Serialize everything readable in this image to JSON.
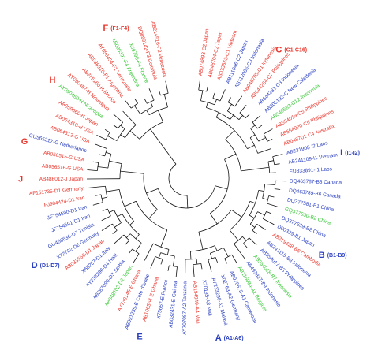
{
  "clades": [
    {
      "name": "C",
      "range": "(C1-C16)",
      "color": "#e8352c",
      "leaves": [
        {
          "label": "AB074893-C2 Japan",
          "color": "#e8352c"
        },
        {
          "label": "AB048704-C2 Japan",
          "color": "#e8352c"
        },
        {
          "label": "AB033553-C1 Vietnam",
          "color": "#e8352c"
        },
        {
          "label": "AB111946-C2 Japan",
          "color": "#2a3fc0"
        },
        {
          "label": "AB112066-C3 Indonesia",
          "color": "#2a3fc0"
        },
        {
          "label": "AB048705-C1 Indonesia",
          "color": "#e8352c"
        },
        {
          "label": "AB644284-C7 Philippines",
          "color": "#e8352c"
        },
        {
          "label": "AB644281-C3 Indonesia",
          "color": "#2a3fc0"
        },
        {
          "label": "AB205192-C New Caledonia",
          "color": "#2a3fc0"
        },
        {
          "label": "AB540583-C12 Indonesia",
          "color": "#38c738"
        },
        {
          "label": "AB554019-C5 Philippines",
          "color": "#e8352c"
        },
        {
          "label": "AB554020-C5 Philippines",
          "color": "#e8352c"
        },
        {
          "label": "AB048701-C4 Australia",
          "color": "#e8352c"
        }
      ]
    },
    {
      "name": "I",
      "range": "(I1-I2)",
      "color": "#2a3fc0",
      "leaves": [
        {
          "label": "AB231908-I2 Laos",
          "color": "#2a3fc0"
        },
        {
          "label": "AB241109-I1 Vietnam",
          "color": "#2a3fc0"
        },
        {
          "label": "EU833891-I1 Laos",
          "color": "#2a3fc0"
        }
      ]
    },
    {
      "name": "B",
      "range": "(B1-B9)",
      "color": "#2a3fc0",
      "leaves": [
        {
          "label": "DQ463787-B6 Canada",
          "color": "#2a3fc0"
        },
        {
          "label": "DQ463789-B6 Canada",
          "color": "#2a3fc0"
        },
        {
          "label": "DQ377581-B1 China",
          "color": "#2a3fc0"
        },
        {
          "label": "GQ377630-B2 China",
          "color": "#38c738"
        },
        {
          "label": "DQ377639-B2 China",
          "color": "#2a3fc0"
        },
        {
          "label": "D00329-B1 Japan",
          "color": "#2a3fc0"
        },
        {
          "label": "AB219428-B8 Cambodia",
          "color": "#e8352c"
        },
        {
          "label": "AB241115-B3 Indonesia",
          "color": "#2a3fc0"
        },
        {
          "label": "AB554017-B3 Philippines",
          "color": "#2a3fc0"
        },
        {
          "label": "AB554018-B7 Indonesia",
          "color": "#38c738"
        },
        {
          "label": "AB493827-B9 Indonesia",
          "color": "#2a3fc0"
        }
      ]
    },
    {
      "name": "A",
      "range": "(A1-A6)",
      "color": "#2a3fc0",
      "leaves": [
        {
          "label": "AB116084-A2 Belgium",
          "color": "#38c738"
        },
        {
          "label": "AB076678-A1 Cameroon",
          "color": "#2a3fc0"
        },
        {
          "label": "X02763-A2 Germany",
          "color": "#2a3fc0"
        },
        {
          "label": "AY233286-A1 Malawi",
          "color": "#2a3fc0"
        },
        {
          "label": "X70185-A3 Mali",
          "color": "#2a3fc0"
        },
        {
          "label": "AB194949-A4 Mali",
          "color": "#e8352c"
        },
        {
          "label": "AY707087-A2 Tanzania",
          "color": "#2a3fc0"
        }
      ]
    },
    {
      "name": "E",
      "color": "#2a3fc0",
      "leaves": [
        {
          "label": "AB032431-E Guinea",
          "color": "#2a3fc0"
        },
        {
          "label": "X75657-E France",
          "color": "#2a3fc0"
        },
        {
          "label": "AB106564-E Ghana",
          "color": "#e8352c"
        },
        {
          "label": "AB091255-E Cote d'Ivoire",
          "color": "#2a3fc0"
        },
        {
          "label": "AY738145-E Ghana",
          "color": "#e8352c"
        }
      ]
    },
    {
      "name": "D",
      "range": "(D1-D7)",
      "color": "#2a3fc0",
      "leaves": [
        {
          "label": "AB048702-D2 Japan",
          "color": "#38c738"
        },
        {
          "label": "AB267090-D3 Serbia",
          "color": "#2a3fc0"
        },
        {
          "label": "AY233296-D4 Haiti",
          "color": "#2a3fc0"
        },
        {
          "label": "X65257-D1 Italy",
          "color": "#2a3fc0"
        },
        {
          "label": "AB033559-D1 Japan",
          "color": "#e8352c"
        },
        {
          "label": "X72702-D2 Germany",
          "color": "#2a3fc0"
        },
        {
          "label": "GU456636-D7 Tunisia",
          "color": "#2a3fc0"
        },
        {
          "label": "JF754591-D1 Iran",
          "color": "#2a3fc0"
        },
        {
          "label": "JF754590-D1 Iran",
          "color": "#2a3fc0"
        },
        {
          "label": "FJ904424-D1 Iran",
          "color": "#e8352c"
        },
        {
          "label": "AF151735-D1 Germany",
          "color": "#e8352c"
        }
      ]
    },
    {
      "name": "J",
      "color": "#e8352c",
      "leaves": [
        {
          "label": "AB486012-J Japan",
          "color": "#e8352c"
        }
      ]
    },
    {
      "name": "G",
      "color": "#e8352c",
      "leaves": [
        {
          "label": "AB056516-G USA",
          "color": "#e8352c"
        },
        {
          "label": "AB056515-G USA",
          "color": "#e8352c"
        },
        {
          "label": "GU565217-G Netherlands",
          "color": "#2a3fc0"
        },
        {
          "label": "AB064313-G USA",
          "color": "#e8352c"
        }
      ]
    },
    {
      "name": "H",
      "color": "#e8352c",
      "leaves": [
        {
          "label": "AB064310-H USA",
          "color": "#e8352c"
        },
        {
          "label": "AB059660-H Japan",
          "color": "#e8352c"
        },
        {
          "label": "AY090460-H Nicaragua",
          "color": "#38c738"
        },
        {
          "label": "AY090457-H Nicaragua",
          "color": "#e8352c"
        },
        {
          "label": "AB375160-H Mexico",
          "color": "#e8352c"
        }
      ]
    },
    {
      "name": "F",
      "range": "(F1-F4)",
      "color": "#e8352c",
      "leaves": [
        {
          "label": "AB036910-F1 Argentina",
          "color": "#e8352c"
        },
        {
          "label": "AY090454-F1 Venezuela",
          "color": "#e8352c"
        },
        {
          "label": "AB086397-F4 Argentina",
          "color": "#38c738"
        },
        {
          "label": "X69798-F4 France",
          "color": "#38c738"
        },
        {
          "label": "DQ899142-F3 Colombia",
          "color": "#e8352c"
        },
        {
          "label": "AB214516-F2 Venezuela",
          "color": "#e8352c"
        }
      ]
    }
  ]
}
